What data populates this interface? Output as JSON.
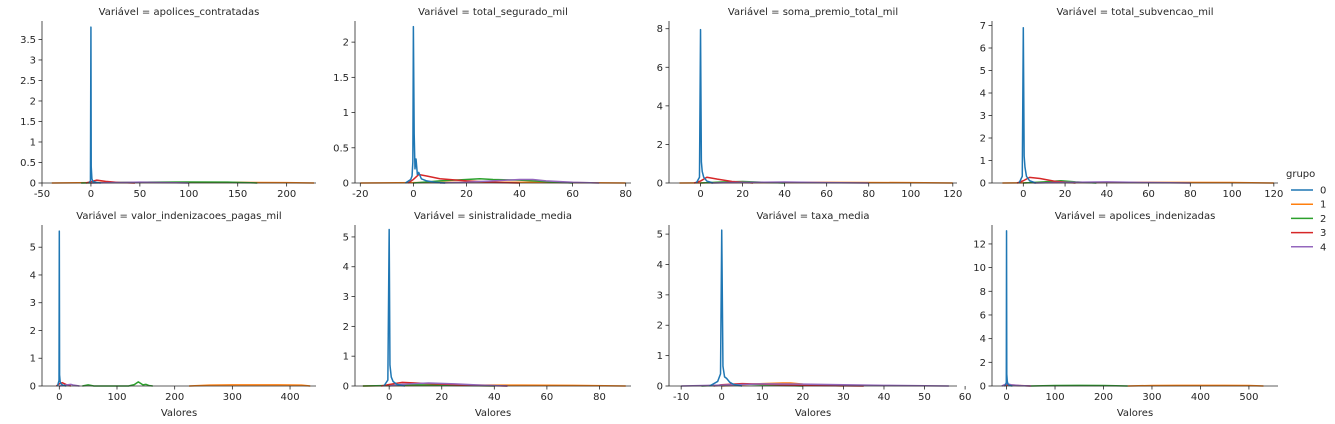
{
  "legend": {
    "title": "grupo",
    "entries": [
      {
        "label": "0",
        "color": "#1f77b4"
      },
      {
        "label": "1",
        "color": "#ff7f0e"
      },
      {
        "label": "2",
        "color": "#2ca02c"
      },
      {
        "label": "3",
        "color": "#d62728"
      },
      {
        "label": "4",
        "color": "#9467bd"
      }
    ],
    "placement": "right"
  },
  "chart_data": [
    {
      "type": "line",
      "title": "Variável = apolices_contratadas",
      "xlabel": "",
      "ylabel": "",
      "xlim": [
        -50,
        230
      ],
      "ylim": [
        0,
        3.95
      ],
      "xticks": [
        -50,
        0,
        50,
        100,
        150,
        200
      ],
      "yticks": [
        0,
        0.5,
        1,
        1.5,
        2,
        2.5,
        3,
        3.5
      ],
      "series": [
        {
          "name": "0",
          "x": [
            -2,
            -0.5,
            0,
            0.3,
            1,
            2,
            4,
            10
          ],
          "y": [
            0,
            0.05,
            3.8,
            0.4,
            0.1,
            0.04,
            0.02,
            0
          ]
        },
        {
          "name": "1",
          "x": [
            -40,
            0,
            50,
            100,
            150,
            200,
            228
          ],
          "y": [
            0,
            0.01,
            0.015,
            0.018,
            0.015,
            0.01,
            0
          ]
        },
        {
          "name": "2",
          "x": [
            -10,
            20,
            60,
            100,
            140,
            170
          ],
          "y": [
            0,
            0.01,
            0.02,
            0.025,
            0.02,
            0
          ]
        },
        {
          "name": "3",
          "x": [
            -5,
            0,
            6,
            15,
            30,
            45
          ],
          "y": [
            0,
            0.03,
            0.07,
            0.04,
            0.01,
            0
          ]
        },
        {
          "name": "4",
          "x": [
            0,
            20,
            50,
            80,
            100
          ],
          "y": [
            0,
            0.01,
            0.02,
            0.01,
            0
          ]
        }
      ]
    },
    {
      "type": "line",
      "title": "Variável = total_segurado_mil",
      "xlabel": "",
      "ylabel": "",
      "xlim": [
        -22,
        82
      ],
      "ylim": [
        0,
        2.3
      ],
      "xticks": [
        -20,
        0,
        20,
        40,
        60,
        80
      ],
      "yticks": [
        0,
        0.5,
        1,
        1.5,
        2
      ],
      "series": [
        {
          "name": "0",
          "x": [
            -3,
            -1,
            -0.5,
            -0.2,
            0,
            0.3,
            0.6,
            1,
            1.5,
            2,
            3,
            5,
            8,
            12
          ],
          "y": [
            0,
            0.05,
            0.1,
            0.3,
            2.22,
            0.7,
            0.2,
            0.34,
            0.12,
            0.15,
            0.06,
            0.03,
            0.01,
            0
          ]
        },
        {
          "name": "1",
          "x": [
            -20,
            0,
            20,
            40,
            60,
            80
          ],
          "y": [
            0,
            0.005,
            0.01,
            0.01,
            0.005,
            0
          ]
        },
        {
          "name": "2",
          "x": [
            0,
            10,
            20,
            25,
            30,
            40,
            50,
            60
          ],
          "y": [
            0,
            0.03,
            0.05,
            0.06,
            0.05,
            0.04,
            0.02,
            0
          ]
        },
        {
          "name": "3",
          "x": [
            -2,
            0,
            2,
            5,
            10,
            20,
            30,
            40
          ],
          "y": [
            0,
            0.05,
            0.12,
            0.1,
            0.06,
            0.03,
            0.01,
            0
          ]
        },
        {
          "name": "4",
          "x": [
            10,
            20,
            30,
            40,
            45,
            50,
            60,
            70
          ],
          "y": [
            0,
            0.01,
            0.03,
            0.05,
            0.05,
            0.03,
            0.01,
            0
          ]
        }
      ]
    },
    {
      "type": "line",
      "title": "Variável = soma_premio_total_mil",
      "xlabel": "",
      "ylabel": "",
      "xlim": [
        -15,
        122
      ],
      "ylim": [
        0,
        8.4
      ],
      "xticks": [
        0,
        20,
        40,
        60,
        80,
        100,
        120
      ],
      "yticks": [
        0,
        2,
        4,
        6,
        8
      ],
      "series": [
        {
          "name": "0",
          "x": [
            -2,
            -0.5,
            0,
            0.4,
            0.8,
            1.5,
            3,
            6
          ],
          "y": [
            0,
            0.3,
            7.95,
            1.1,
            0.6,
            0.3,
            0.1,
            0
          ]
        },
        {
          "name": "1",
          "x": [
            -10,
            20,
            60,
            100,
            120
          ],
          "y": [
            0,
            0.02,
            0.03,
            0.02,
            0
          ]
        },
        {
          "name": "2",
          "x": [
            0,
            10,
            20,
            30,
            40
          ],
          "y": [
            0,
            0.05,
            0.08,
            0.04,
            0
          ]
        },
        {
          "name": "3",
          "x": [
            -3,
            0,
            3,
            8,
            15,
            25
          ],
          "y": [
            0,
            0.1,
            0.3,
            0.2,
            0.08,
            0
          ]
        },
        {
          "name": "4",
          "x": [
            5,
            20,
            40,
            60,
            80
          ],
          "y": [
            0,
            0.03,
            0.05,
            0.02,
            0
          ]
        }
      ]
    },
    {
      "type": "line",
      "title": "Variável = total_subvencao_mil",
      "xlabel": "",
      "ylabel": "",
      "xlim": [
        -15,
        122
      ],
      "ylim": [
        0,
        7.2
      ],
      "xticks": [
        0,
        20,
        40,
        60,
        80,
        100,
        120
      ],
      "yticks": [
        0,
        1,
        2,
        3,
        4,
        5,
        6,
        7
      ],
      "series": [
        {
          "name": "0",
          "x": [
            -2,
            -0.5,
            0,
            0.4,
            0.8,
            1.5,
            3,
            6
          ],
          "y": [
            0,
            0.3,
            6.9,
            1.2,
            0.7,
            0.3,
            0.1,
            0
          ]
        },
        {
          "name": "1",
          "x": [
            -10,
            20,
            60,
            100,
            120
          ],
          "y": [
            0,
            0.02,
            0.03,
            0.02,
            0
          ]
        },
        {
          "name": "2",
          "x": [
            0,
            10,
            18,
            25,
            35
          ],
          "y": [
            0,
            0.05,
            0.1,
            0.05,
            0
          ]
        },
        {
          "name": "3",
          "x": [
            -3,
            0,
            3,
            8,
            15,
            25
          ],
          "y": [
            0,
            0.1,
            0.25,
            0.2,
            0.08,
            0
          ]
        },
        {
          "name": "4",
          "x": [
            5,
            20,
            40,
            60,
            80
          ],
          "y": [
            0,
            0.03,
            0.05,
            0.02,
            0
          ]
        }
      ]
    },
    {
      "type": "line",
      "title": "Variável = valor_indenizacoes_pagas_mil",
      "xlabel": "Valores",
      "ylabel": "",
      "xlim": [
        -30,
        445
      ],
      "ylim": [
        0,
        5.8
      ],
      "xticks": [
        0,
        100,
        200,
        300,
        400
      ],
      "yticks": [
        0,
        1,
        2,
        3,
        4,
        5
      ],
      "series": [
        {
          "name": "0",
          "x": [
            -3,
            -0.5,
            0,
            0.5,
            1.5,
            3,
            6,
            12
          ],
          "y": [
            0,
            0.2,
            5.58,
            0.4,
            0.15,
            0.08,
            0.03,
            0
          ]
        },
        {
          "name": "1",
          "x": [
            225,
            260,
            300,
            340,
            380,
            420,
            435
          ],
          "y": [
            0,
            0.03,
            0.04,
            0.04,
            0.04,
            0.03,
            0
          ]
        },
        {
          "name": "2",
          "x": [
            40,
            50,
            60,
            120,
            130,
            137,
            145,
            150,
            155,
            162
          ],
          "y": [
            0,
            0.04,
            0,
            0,
            0.05,
            0.15,
            0.04,
            0.06,
            0.02,
            0
          ]
        },
        {
          "name": "3",
          "x": [
            -5,
            0,
            5,
            12,
            20
          ],
          "y": [
            0,
            0.08,
            0.12,
            0.05,
            0
          ]
        },
        {
          "name": "4",
          "x": [
            0,
            10,
            20,
            25,
            35
          ],
          "y": [
            0,
            0.03,
            0.06,
            0.03,
            0
          ]
        }
      ]
    },
    {
      "type": "line",
      "title": "Variável = sinistralidade_media",
      "xlabel": "Valores",
      "ylabel": "",
      "xlim": [
        -13,
        92
      ],
      "ylim": [
        0,
        5.4
      ],
      "xticks": [
        0,
        20,
        40,
        60,
        80
      ],
      "yticks": [
        0,
        1,
        2,
        3,
        4,
        5
      ],
      "series": [
        {
          "name": "0",
          "x": [
            -2,
            -0.5,
            0,
            0.3,
            0.8,
            1.5,
            3,
            6
          ],
          "y": [
            0,
            0.2,
            5.25,
            0.7,
            0.3,
            0.15,
            0.05,
            0
          ]
        },
        {
          "name": "1",
          "x": [
            -10,
            10,
            30,
            50,
            70,
            90
          ],
          "y": [
            0,
            0.02,
            0.03,
            0.03,
            0.02,
            0
          ]
        },
        {
          "name": "2",
          "x": [
            -10,
            0,
            10,
            25,
            40
          ],
          "y": [
            0,
            0.02,
            0.04,
            0.02,
            0
          ]
        },
        {
          "name": "3",
          "x": [
            -3,
            0,
            5,
            15,
            30,
            45
          ],
          "y": [
            0,
            0.05,
            0.12,
            0.08,
            0.03,
            0
          ]
        },
        {
          "name": "4",
          "x": [
            0,
            5,
            15,
            25,
            35,
            45
          ],
          "y": [
            0,
            0.06,
            0.1,
            0.07,
            0.03,
            0
          ]
        }
      ]
    },
    {
      "type": "line",
      "title": "Variável = taxa_media",
      "xlabel": "Valores",
      "ylabel": "",
      "xlim": [
        -13,
        58
      ],
      "ylim": [
        0,
        5.3
      ],
      "xticks": [
        -10,
        0,
        10,
        20,
        30,
        40,
        50,
        60
      ],
      "yticks": [
        0,
        1,
        2,
        3,
        4,
        5
      ],
      "series": [
        {
          "name": "0",
          "x": [
            -3,
            -1,
            -0.3,
            0,
            0.3,
            0.7,
            1.2,
            2,
            3,
            5
          ],
          "y": [
            0,
            0.15,
            0.4,
            5.13,
            0.65,
            0.3,
            0.25,
            0.12,
            0.05,
            0
          ]
        },
        {
          "name": "1",
          "x": [
            0,
            5,
            10,
            15,
            17,
            20,
            25,
            30
          ],
          "y": [
            0,
            0.04,
            0.08,
            0.1,
            0.1,
            0.06,
            0.02,
            0
          ]
        },
        {
          "name": "2",
          "x": [
            -5,
            0,
            5,
            10,
            20
          ],
          "y": [
            0,
            0.03,
            0.06,
            0.04,
            0
          ]
        },
        {
          "name": "3",
          "x": [
            -2,
            0,
            5,
            10,
            20,
            35
          ],
          "y": [
            0,
            0.04,
            0.08,
            0.06,
            0.02,
            0
          ]
        },
        {
          "name": "4",
          "x": [
            -10,
            0,
            10,
            20,
            30,
            40,
            50,
            56
          ],
          "y": [
            0,
            0.03,
            0.07,
            0.06,
            0.04,
            0.02,
            0.01,
            0
          ]
        }
      ]
    },
    {
      "type": "line",
      "title": "Variável = apolices_indenizadas",
      "xlabel": "Valores",
      "ylabel": "",
      "xlim": [
        -30,
        560
      ],
      "ylim": [
        0,
        13.6
      ],
      "xticks": [
        0,
        100,
        200,
        300,
        400,
        500
      ],
      "yticks": [
        0,
        2,
        4,
        6,
        8,
        10,
        12
      ],
      "series": [
        {
          "name": "0",
          "x": [
            -3,
            -0.5,
            0,
            0.5,
            1.5,
            3,
            6,
            12
          ],
          "y": [
            0,
            0.3,
            13.1,
            1,
            0.4,
            0.15,
            0.05,
            0
          ]
        },
        {
          "name": "1",
          "x": [
            250,
            300,
            350,
            400,
            450,
            500,
            530
          ],
          "y": [
            0,
            0.04,
            0.05,
            0.05,
            0.05,
            0.04,
            0
          ]
        },
        {
          "name": "2",
          "x": [
            50,
            100,
            150,
            200,
            250
          ],
          "y": [
            0,
            0.04,
            0.05,
            0.04,
            0
          ]
        },
        {
          "name": "3",
          "x": [
            -5,
            0,
            10,
            25,
            50
          ],
          "y": [
            0,
            0.1,
            0.08,
            0.04,
            0
          ]
        },
        {
          "name": "4",
          "x": [
            -10,
            0,
            10,
            30,
            50
          ],
          "y": [
            0,
            0.2,
            0.1,
            0.03,
            0
          ]
        }
      ]
    }
  ]
}
